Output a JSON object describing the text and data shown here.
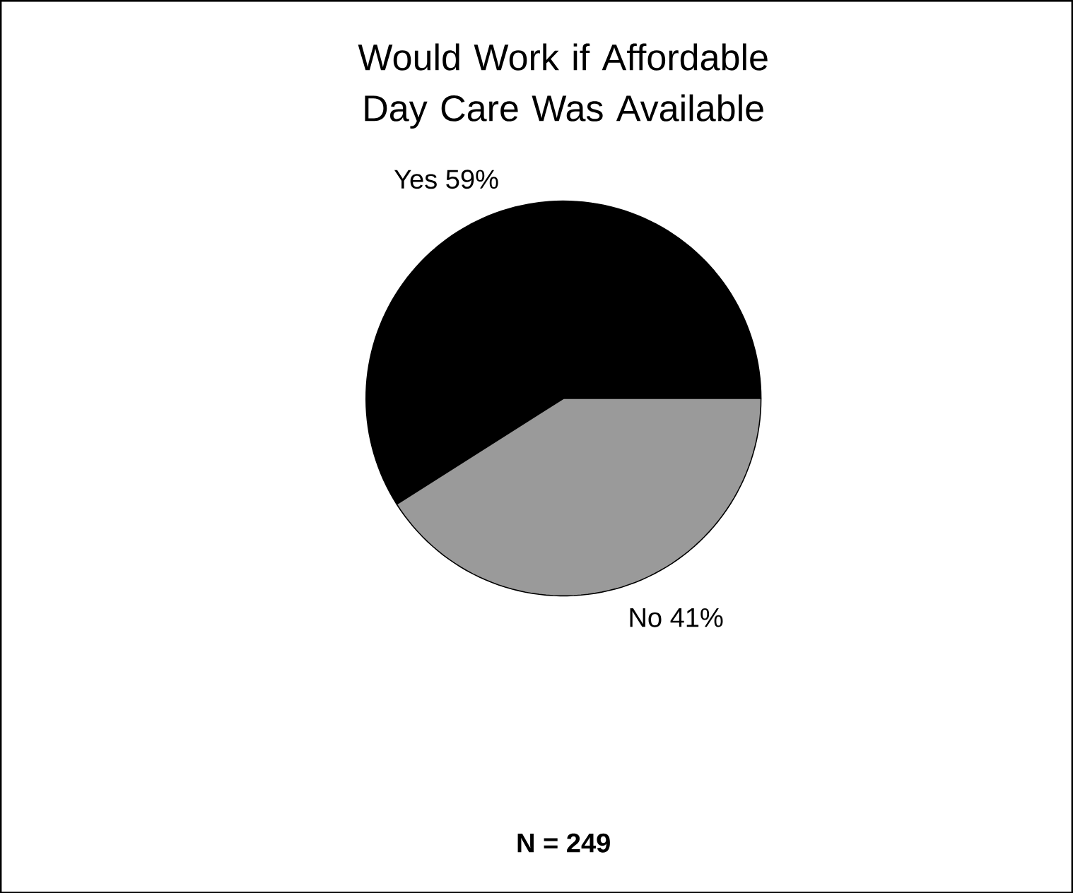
{
  "chart_data": {
    "type": "pie",
    "title": "Would Work if Affordable Day Care Was Available",
    "categories": [
      "Yes",
      "No"
    ],
    "values": [
      59,
      41
    ],
    "colors": [
      "#000000",
      "#9a9a9a"
    ],
    "value_labels": [
      "59%",
      "41%"
    ],
    "annotations": [
      "**N = 249**"
    ]
  }
}
